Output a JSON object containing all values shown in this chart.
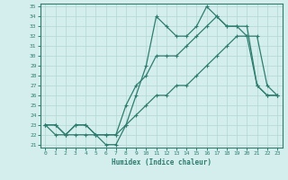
{
  "xlabel": "Humidex (Indice chaleur)",
  "ylabel": "",
  "x": [
    0,
    1,
    2,
    3,
    4,
    5,
    6,
    7,
    8,
    9,
    10,
    11,
    12,
    13,
    14,
    15,
    16,
    17,
    18,
    19,
    20,
    21,
    22,
    23
  ],
  "line1": [
    23,
    23,
    22,
    22,
    22,
    22,
    21,
    21,
    23,
    26,
    29,
    34,
    33,
    32,
    32,
    33,
    35,
    34,
    33,
    33,
    32,
    32,
    27,
    26
  ],
  "line2": [
    23,
    22,
    22,
    23,
    23,
    22,
    22,
    22,
    25,
    27,
    28,
    30,
    30,
    30,
    31,
    32,
    33,
    34,
    33,
    33,
    33,
    27,
    26,
    26
  ],
  "line3": [
    23,
    23,
    22,
    23,
    23,
    22,
    22,
    22,
    23,
    24,
    25,
    26,
    26,
    27,
    27,
    28,
    29,
    30,
    31,
    32,
    32,
    27,
    26,
    26
  ],
  "color": "#2e7d6f",
  "bg_color": "#d4eeed",
  "grid_color": "#b2d8d4",
  "ylim": [
    21,
    35
  ],
  "xlim": [
    -0.5,
    23.5
  ],
  "yticks": [
    21,
    22,
    23,
    24,
    25,
    26,
    27,
    28,
    29,
    30,
    31,
    32,
    33,
    34,
    35
  ],
  "xticks": [
    0,
    1,
    2,
    3,
    4,
    5,
    6,
    7,
    8,
    9,
    10,
    11,
    12,
    13,
    14,
    15,
    16,
    17,
    18,
    19,
    20,
    21,
    22,
    23
  ]
}
